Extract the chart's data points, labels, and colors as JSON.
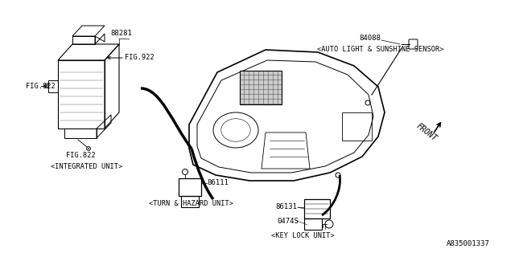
{
  "bg_color": "#ffffff",
  "line_color": "#000000",
  "text_color": "#000000",
  "title_bottom": "A835001337",
  "labels": {
    "fig922_top": "FIG.922",
    "fig822_mid": "FIG.822",
    "fig822_bot": "FIG.822",
    "part_88281": "88281",
    "integrated": "<INTEGRATED UNIT>",
    "part_84088": "84088",
    "auto_light": "<AUTO LIGHT & SUNSHINE SENSOR>",
    "part_86111": "86111",
    "turn_hazard": "<TURN & HAZARD UNIT>",
    "part_86131": "86131",
    "part_0474s": "0474S",
    "key_lock": "<KEY LOCK UNIT>",
    "front": "FRONT"
  }
}
